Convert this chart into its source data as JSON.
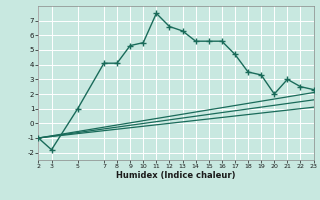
{
  "xlabel": "Humidex (Indice chaleur)",
  "background_color": "#c8e8e0",
  "grid_color": "#ffffff",
  "line_color": "#1a6b5a",
  "xlim": [
    2,
    23
  ],
  "ylim": [
    -2.5,
    8.0
  ],
  "xticks": [
    2,
    3,
    5,
    7,
    8,
    9,
    10,
    11,
    12,
    13,
    14,
    15,
    16,
    17,
    18,
    19,
    20,
    21,
    22,
    23
  ],
  "yticks": [
    -2,
    -1,
    0,
    1,
    2,
    3,
    4,
    5,
    6,
    7
  ],
  "main_line_x": [
    2,
    3,
    5,
    7,
    8,
    9,
    10,
    11,
    12,
    13,
    14,
    15,
    16,
    17,
    18,
    19,
    20,
    21,
    22,
    23
  ],
  "main_line_y": [
    -1.0,
    -1.8,
    1.0,
    4.1,
    4.1,
    5.3,
    5.5,
    7.5,
    6.6,
    6.3,
    5.6,
    5.6,
    5.6,
    4.7,
    3.5,
    3.3,
    2.0,
    3.0,
    2.5,
    2.3
  ],
  "ref_line1_x": [
    2,
    23
  ],
  "ref_line1_y": [
    -1.0,
    2.1
  ],
  "ref_line2_x": [
    2,
    23
  ],
  "ref_line2_y": [
    -1.0,
    1.6
  ],
  "ref_line3_x": [
    2,
    23
  ],
  "ref_line3_y": [
    -1.0,
    1.1
  ]
}
